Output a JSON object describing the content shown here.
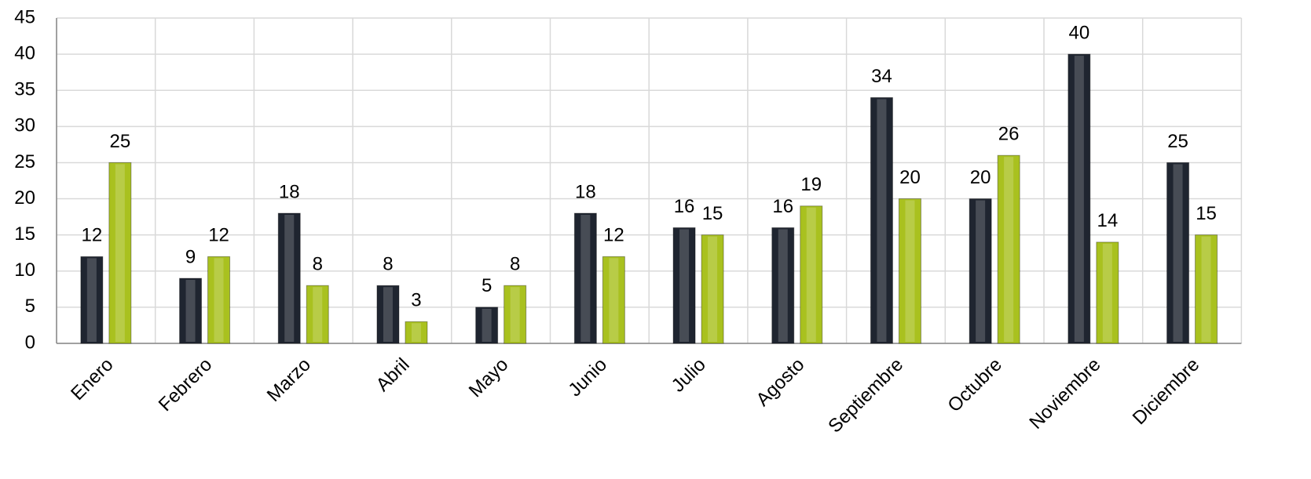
{
  "chart_data": {
    "type": "bar",
    "categories": [
      "Enero",
      "Febrero",
      "Marzo",
      "Abril",
      "Mayo",
      "Junio",
      "Julio",
      "Agosto",
      "Septiembre",
      "Octubre",
      "Noviembre",
      "Diciembre"
    ],
    "series": [
      {
        "color": "#1f2530",
        "values": [
          12,
          9,
          18,
          8,
          5,
          18,
          16,
          16,
          34,
          20,
          40,
          25
        ]
      },
      {
        "color": "#a9c11f",
        "values": [
          25,
          12,
          8,
          3,
          8,
          12,
          15,
          19,
          20,
          26,
          14,
          15
        ]
      }
    ],
    "ylim": [
      0,
      45
    ],
    "yticks": [
      0,
      5,
      10,
      15,
      20,
      25,
      30,
      35,
      40,
      45
    ],
    "grid": true
  }
}
